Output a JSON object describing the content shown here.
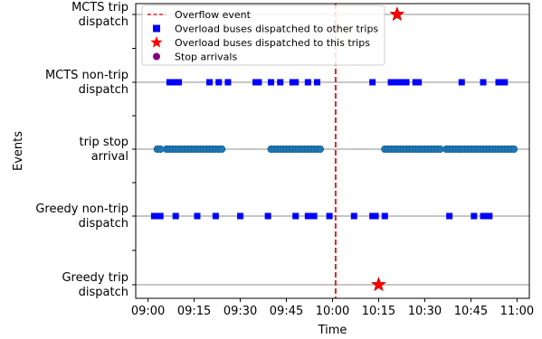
{
  "chart_data": {
    "type": "scatter",
    "xlabel": "Time",
    "ylabel": "Events",
    "x_ticks": [
      "09:00",
      "09:15",
      "09:30",
      "09:45",
      "10:00",
      "10:15",
      "10:30",
      "10:45",
      "11:00"
    ],
    "x_range": [
      "08:56",
      "11:04"
    ],
    "rows": [
      "Greedy trip\ndispatch",
      "Greedy non-trip\ndispatch",
      "trip stop\narrival",
      "MCTS non-trip\ndispatch",
      "MCTS trip\ndispatch"
    ],
    "overflow_time": "10:01",
    "legend": {
      "placement": "top-left",
      "entries": [
        {
          "label": "Overflow event",
          "marker": "dashed-line",
          "color": "#d62728"
        },
        {
          "label": "Overload buses dispatched to other trips",
          "marker": "square",
          "color": "#0000ff"
        },
        {
          "label": "Overload buses dispatched to this trips",
          "marker": "star",
          "color": "#ff0000"
        },
        {
          "label": "Stop arrivals",
          "marker": "circle",
          "color": "#800080"
        }
      ]
    },
    "series": [
      {
        "row": "MCTS trip\ndispatch",
        "marker": "star",
        "color": "#ff0000",
        "times": [
          "10:21"
        ]
      },
      {
        "row": "MCTS non-trip\ndispatch",
        "marker": "square",
        "color": "#0000ff",
        "times": [
          "09:07",
          "09:08",
          "09:09",
          "09:10",
          "09:20",
          "09:23",
          "09:26",
          "09:35",
          "09:36",
          "09:40",
          "09:43",
          "09:47",
          "09:48",
          "09:52",
          "09:55",
          "10:13",
          "10:19",
          "10:20",
          "10:21",
          "10:22",
          "10:23",
          "10:24",
          "10:27",
          "10:28",
          "10:42",
          "10:49",
          "10:54",
          "10:56"
        ]
      },
      {
        "row": "trip stop\narrival",
        "marker": "circle",
        "color": "#1f77b4",
        "times": [
          "09:03",
          "09:04",
          "09:06",
          "09:07",
          "09:08",
          "09:09",
          "09:10",
          "09:11",
          "09:12",
          "09:13",
          "09:14",
          "09:15",
          "09:16",
          "09:17",
          "09:18",
          "09:19",
          "09:20",
          "09:21",
          "09:22",
          "09:23",
          "09:24",
          "09:40",
          "09:41",
          "09:42",
          "09:43",
          "09:44",
          "09:45",
          "09:46",
          "09:47",
          "09:48",
          "09:49",
          "09:50",
          "09:51",
          "09:52",
          "09:53",
          "09:54",
          "09:55",
          "09:56",
          "10:17",
          "10:18",
          "10:19",
          "10:20",
          "10:21",
          "10:22",
          "10:23",
          "10:24",
          "10:25",
          "10:26",
          "10:27",
          "10:28",
          "10:29",
          "10:30",
          "10:31",
          "10:32",
          "10:33",
          "10:34",
          "10:35",
          "10:37",
          "10:38",
          "10:39",
          "10:40",
          "10:41",
          "10:42",
          "10:43",
          "10:44",
          "10:45",
          "10:46",
          "10:47",
          "10:48",
          "10:49",
          "10:50",
          "10:51",
          "10:52",
          "10:53",
          "10:54",
          "10:55",
          "10:56",
          "10:57",
          "10:58",
          "10:59"
        ]
      },
      {
        "row": "Greedy non-trip\ndispatch",
        "marker": "square",
        "color": "#0000ff",
        "times": [
          "09:02",
          "09:03",
          "09:04",
          "09:09",
          "09:16",
          "09:22",
          "09:30",
          "09:39",
          "09:48",
          "09:52",
          "09:53",
          "09:54",
          "09:59",
          "10:07",
          "10:13",
          "10:14",
          "10:17",
          "10:38",
          "10:46",
          "10:49",
          "10:50",
          "10:51"
        ]
      },
      {
        "row": "Greedy trip\ndispatch",
        "marker": "star",
        "color": "#ff0000",
        "times": [
          "10:15"
        ]
      }
    ]
  }
}
